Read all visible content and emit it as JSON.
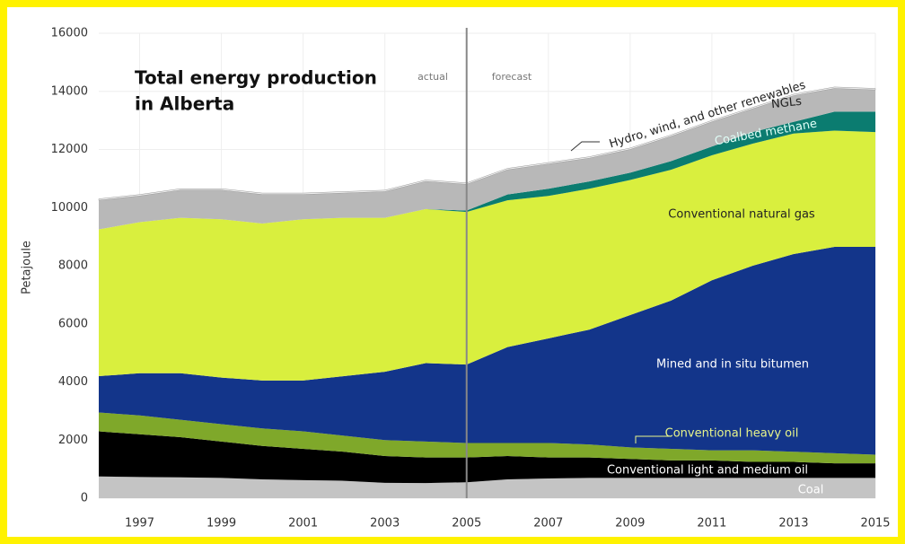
{
  "chart_data": {
    "type": "stacked_area",
    "title": [
      "Total energy production",
      "in Alberta"
    ],
    "y_label": "Petajoule",
    "annotations": [
      "actual",
      "forecast"
    ],
    "divider_x": 2005,
    "x": [
      1996,
      1997,
      1998,
      1999,
      2000,
      2001,
      2002,
      2003,
      2004,
      2005,
      2006,
      2007,
      2008,
      2009,
      2010,
      2011,
      2012,
      2013,
      2014,
      2015
    ],
    "xlim": [
      1996,
      2015
    ],
    "xticks": [
      1997,
      1999,
      2001,
      2003,
      2005,
      2007,
      2009,
      2011,
      2013,
      2015
    ],
    "ylim": [
      0,
      16000
    ],
    "yticks": [
      0,
      2000,
      4000,
      6000,
      8000,
      10000,
      12000,
      14000,
      16000
    ],
    "grid": true,
    "series": [
      {
        "name": "Coal",
        "color": "#c4c4c4",
        "values": [
          750,
          730,
          720,
          700,
          650,
          620,
          600,
          530,
          520,
          550,
          650,
          680,
          700,
          700,
          700,
          700,
          700,
          700,
          700,
          700
        ]
      },
      {
        "name": "Conventional light and medium oil",
        "color": "#000000",
        "values": [
          1550,
          1470,
          1380,
          1250,
          1150,
          1080,
          1000,
          920,
          880,
          850,
          800,
          720,
          700,
          650,
          600,
          600,
          550,
          550,
          500,
          500
        ]
      },
      {
        "name": "Conventional heavy oil",
        "color": "#7fa82a",
        "values": [
          650,
          650,
          600,
          600,
          600,
          600,
          550,
          550,
          550,
          500,
          450,
          500,
          450,
          400,
          400,
          350,
          400,
          350,
          350,
          300
        ]
      },
      {
        "name": "Mined and in situ bitumen",
        "color": "#13358a",
        "values": [
          1250,
          1450,
          1600,
          1600,
          1650,
          1750,
          2050,
          2350,
          2700,
          2700,
          3300,
          3600,
          3950,
          4550,
          5100,
          5850,
          6350,
          6800,
          7100,
          7150
        ]
      },
      {
        "name": "Conventional natural gas",
        "color": "#d9ef3e",
        "values": [
          5050,
          5200,
          5350,
          5450,
          5400,
          5550,
          5450,
          5300,
          5300,
          5250,
          5050,
          4900,
          4850,
          4650,
          4500,
          4300,
          4200,
          4150,
          4000,
          3950
        ]
      },
      {
        "name": "Coalbed methane",
        "color": "#0b7c70",
        "values": [
          0,
          0,
          0,
          0,
          0,
          0,
          0,
          0,
          0,
          50,
          200,
          250,
          250,
          250,
          300,
          300,
          400,
          400,
          650,
          700
        ]
      },
      {
        "name": "NGLs",
        "color": "#b8b8b8",
        "values": [
          1000,
          900,
          950,
          1000,
          1000,
          850,
          850,
          900,
          950,
          900,
          850,
          850,
          800,
          800,
          850,
          850,
          800,
          900,
          800,
          750
        ]
      },
      {
        "name": "Hydro, wind, and other renewables",
        "color": "#ececec",
        "values": [
          50,
          50,
          50,
          50,
          50,
          50,
          50,
          50,
          50,
          50,
          50,
          50,
          50,
          50,
          50,
          50,
          50,
          50,
          50,
          50
        ]
      }
    ]
  }
}
